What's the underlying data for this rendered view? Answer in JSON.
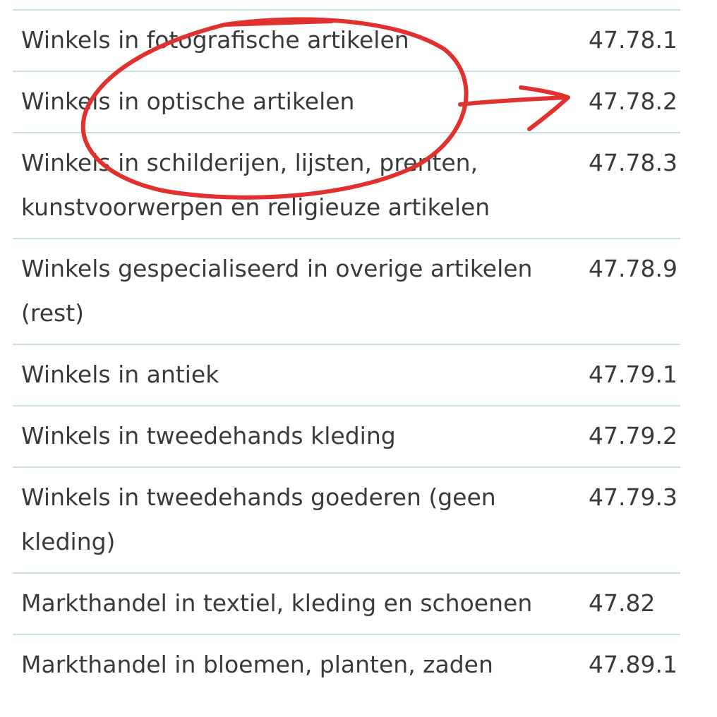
{
  "rows": [
    {
      "description": "Winkels in fotografische artikelen",
      "code": "47.78.1"
    },
    {
      "description": "Winkels in optische artikelen",
      "code": "47.78.2"
    },
    {
      "description": "Winkels in schilderijen, lijsten, prenten, kunstvoorwerpen en religieuze artikelen",
      "code": "47.78.3"
    },
    {
      "description": "Winkels gespecialiseerd in overige artikelen (rest)",
      "code": "47.78.9"
    },
    {
      "description": "Winkels in antiek",
      "code": "47.79.1"
    },
    {
      "description": "Winkels in tweedehands kleding",
      "code": "47.79.2"
    },
    {
      "description": "Winkels in tweedehands goederen (geen kleding)",
      "code": "47.79.3"
    },
    {
      "description": "Markthandel in textiel, kleding en schoenen",
      "code": "47.82"
    },
    {
      "description": "Markthandel in bloemen, planten, zaden",
      "code": "47.89.1"
    }
  ],
  "annotation": {
    "color": "#e0312f",
    "highlighted_row": "Winkels in optische artikelen"
  }
}
